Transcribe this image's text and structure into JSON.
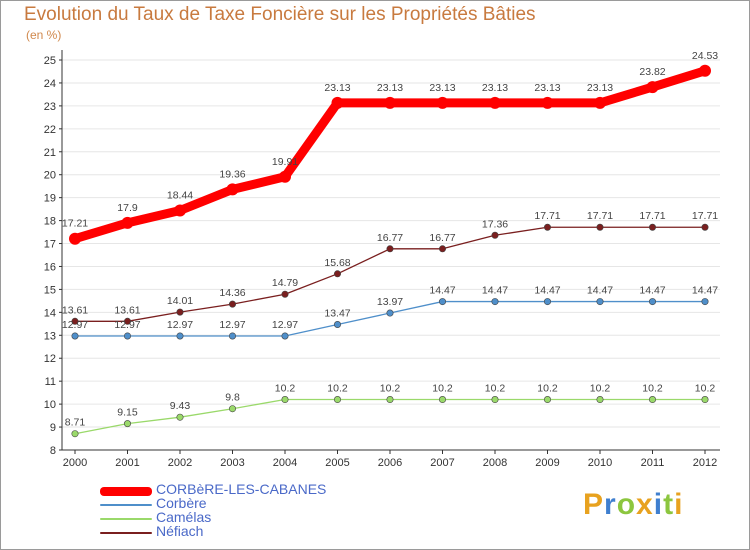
{
  "title": "Evolution du Taux de Taxe Foncière sur les Propriétés Bâties",
  "unit_label": "(en %)",
  "logo": {
    "text": "Proxiti",
    "letters": [
      {
        "ch": "P",
        "color": "#e8a21f"
      },
      {
        "ch": "r",
        "color": "#3f7fcf"
      },
      {
        "ch": "o",
        "color": "#8cc63f"
      },
      {
        "ch": "x",
        "color": "#e8a21f"
      },
      {
        "ch": "i",
        "color": "#3f7fcf"
      },
      {
        "ch": "t",
        "color": "#8cc63f"
      },
      {
        "ch": "i",
        "color": "#e8a21f"
      }
    ]
  },
  "chart_data": {
    "type": "line",
    "title": "Evolution du Taux de Taxe Foncière sur les Propriétés Bâties",
    "ylabel": "(en %)",
    "xlabel": "",
    "ylim": [
      8,
      25
    ],
    "yticks": [
      8,
      9,
      10,
      11,
      12,
      13,
      14,
      15,
      16,
      17,
      18,
      19,
      20,
      21,
      22,
      23,
      24,
      25
    ],
    "categories": [
      "2000",
      "2001",
      "2002",
      "2003",
      "2004",
      "2005",
      "2006",
      "2007",
      "2008",
      "2009",
      "2010",
      "2011",
      "2012"
    ],
    "series": [
      {
        "name": "CORBèRE-LES-CABANES",
        "color": "#ff0000",
        "width": "thick",
        "values": [
          17.21,
          17.9,
          18.44,
          19.36,
          19.91,
          23.13,
          23.13,
          23.13,
          23.13,
          23.13,
          23.13,
          23.82,
          24.53
        ],
        "labels": [
          "17.21",
          "17.9",
          "18.44",
          "19.36",
          "19.91",
          "23.13",
          "23.13",
          "23.13",
          "23.13",
          "23.13",
          "23.13",
          "23.82",
          "24.53"
        ]
      },
      {
        "name": "Corbère",
        "color": "#4f8fca",
        "width": "thin",
        "values": [
          12.97,
          12.97,
          12.97,
          12.97,
          12.97,
          13.47,
          13.97,
          14.47,
          14.47,
          14.47,
          14.47,
          14.47,
          14.47
        ],
        "labels": [
          "12.97",
          "12.97",
          "12.97",
          "12.97",
          "12.97",
          "13.47",
          "13.97",
          "14.47",
          "14.47",
          "14.47",
          "14.47",
          "14.47",
          "14.47"
        ]
      },
      {
        "name": "Camélas",
        "color": "#9ad96a",
        "width": "thin",
        "values": [
          8.71,
          9.15,
          9.43,
          9.8,
          10.2,
          10.2,
          10.2,
          10.2,
          10.2,
          10.2,
          10.2,
          10.2,
          10.2
        ],
        "labels": [
          "8.71",
          "9.15",
          "9.43",
          "9.8",
          "10.2",
          "10.2",
          "10.2",
          "10.2",
          "10.2",
          "10.2",
          "10.2",
          "10.2",
          "10.2"
        ]
      },
      {
        "name": "Néfiach",
        "color": "#7a1f1f",
        "width": "thin",
        "values": [
          13.61,
          13.61,
          14.01,
          14.36,
          14.79,
          15.68,
          16.77,
          16.77,
          17.36,
          17.71,
          17.71,
          17.71,
          17.71
        ],
        "labels": [
          "13.61",
          "13.61",
          "14.01",
          "14.36",
          "14.79",
          "15.68",
          "16.77",
          "16.77",
          "17.36",
          "17.71",
          "17.71",
          "17.71",
          "17.71"
        ]
      }
    ]
  }
}
